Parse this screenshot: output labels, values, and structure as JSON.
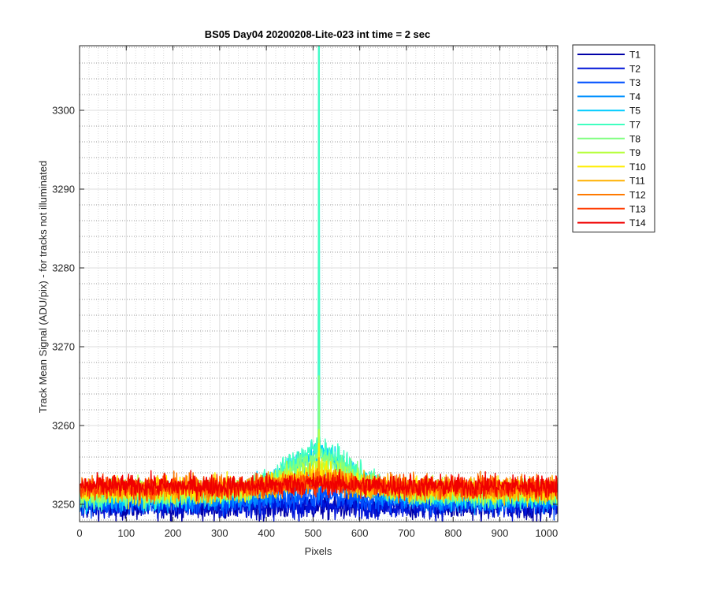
{
  "chart_data": {
    "type": "line",
    "title": "BS05 Day04 20200208-Lite-023 int time = 2 sec",
    "xlabel": "Pixels",
    "ylabel": "Track Mean Signal (ADU/pix) - for tracks not illuminated",
    "xlim": [
      0,
      1024
    ],
    "ylim": [
      3247.8,
      3308.2
    ],
    "x_ticks": [
      0,
      100,
      200,
      300,
      400,
      500,
      600,
      700,
      800,
      900,
      1000
    ],
    "y_ticks": [
      3250,
      3260,
      3270,
      3280,
      3290,
      3300
    ],
    "grid": "major and minor",
    "legend_position": "outside right, top",
    "series": [
      {
        "name": "T1",
        "color": "#0000a8",
        "baseline": 3249.7,
        "noise": 1.2,
        "hump": 0.0,
        "spike": 0.0
      },
      {
        "name": "T2",
        "color": "#0014d8",
        "baseline": 3249.9,
        "noise": 1.2,
        "hump": 0.0,
        "spike": 0.0
      },
      {
        "name": "T3",
        "color": "#0050ff",
        "baseline": 3250.3,
        "noise": 1.1,
        "hump": 0.5,
        "spike": 0.0
      },
      {
        "name": "T4",
        "color": "#0090ff",
        "baseline": 3250.6,
        "noise": 1.1,
        "hump": 1.5,
        "spike": 0.0
      },
      {
        "name": "T5",
        "color": "#00ccff",
        "baseline": 3250.9,
        "noise": 1.1,
        "hump": 3.5,
        "spike": 62.0
      },
      {
        "name": "T7",
        "color": "#40ffc0",
        "baseline": 3251.1,
        "noise": 1.1,
        "hump": 3.8,
        "spike": 62.0
      },
      {
        "name": "T8",
        "color": "#80ff80",
        "baseline": 3251.3,
        "noise": 1.1,
        "hump": 3.0,
        "spike": 15.0
      },
      {
        "name": "T9",
        "color": "#b8ff40",
        "baseline": 3251.5,
        "noise": 1.1,
        "hump": 2.0,
        "spike": 8.0
      },
      {
        "name": "T10",
        "color": "#ffee00",
        "baseline": 3251.7,
        "noise": 1.1,
        "hump": 1.2,
        "spike": 6.0
      },
      {
        "name": "T11",
        "color": "#ffb000",
        "baseline": 3251.9,
        "noise": 1.1,
        "hump": 0.8,
        "spike": 4.0
      },
      {
        "name": "T12",
        "color": "#ff7a00",
        "baseline": 3252.1,
        "noise": 1.1,
        "hump": 0.5,
        "spike": 2.0
      },
      {
        "name": "T13",
        "color": "#ff3a00",
        "baseline": 3252.2,
        "noise": 1.0,
        "hump": 0.3,
        "spike": 1.0
      },
      {
        "name": "T14",
        "color": "#f00000",
        "baseline": 3252.3,
        "noise": 1.0,
        "hump": 0.2,
        "spike": 0.5
      }
    ]
  }
}
